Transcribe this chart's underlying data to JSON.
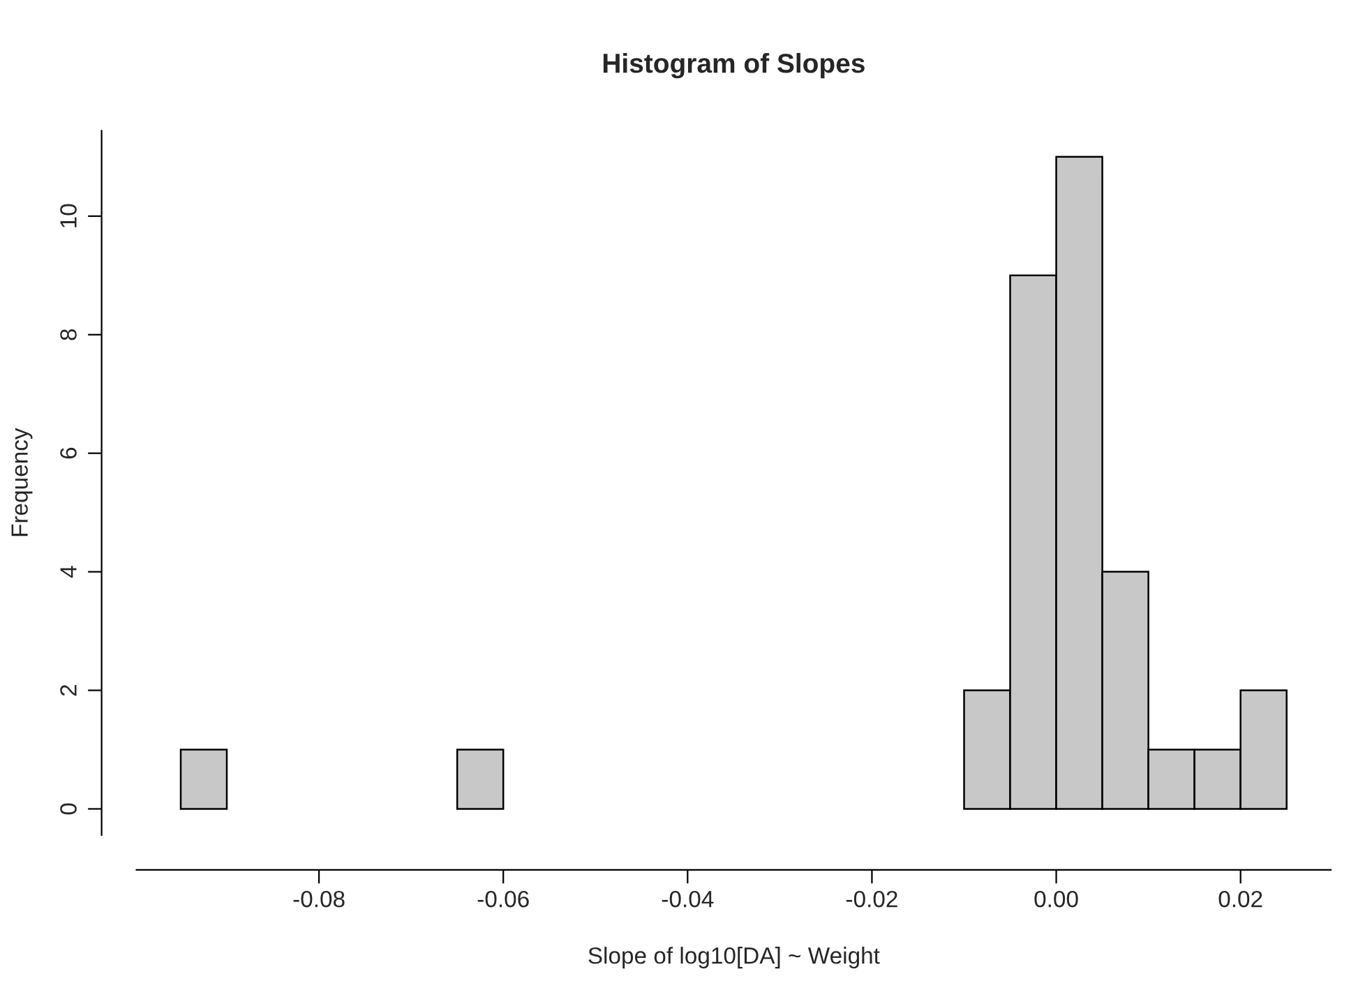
{
  "chart_data": {
    "type": "histogram",
    "title": "Histogram of Slopes",
    "xlabel": "Slope of log10[DA] ~ Weight",
    "ylabel": "Frequency",
    "bins": [
      -0.095,
      -0.09,
      -0.085,
      -0.08,
      -0.075,
      -0.07,
      -0.065,
      -0.06,
      -0.055,
      -0.05,
      -0.045,
      -0.04,
      -0.035,
      -0.03,
      -0.025,
      -0.02,
      -0.015,
      -0.01,
      -0.005,
      0.0,
      0.005,
      0.01,
      0.015,
      0.02,
      0.025
    ],
    "values": [
      1,
      0,
      0,
      0,
      0,
      0,
      1,
      0,
      0,
      0,
      0,
      0,
      0,
      0,
      0,
      0,
      0,
      2,
      9,
      11,
      4,
      1,
      1,
      2
    ],
    "color": "#c8c8c8",
    "xlim": [
      -0.0998,
      0.0298
    ],
    "ylim": [
      -0.44,
      11.44
    ],
    "xticks": [
      -0.08,
      -0.06,
      -0.04,
      -0.02,
      {
        "value": 0.0,
        "label": "0.00"
      },
      0.02
    ],
    "yticks": [
      0,
      2,
      4,
      6,
      8,
      10
    ],
    "grid": false
  }
}
